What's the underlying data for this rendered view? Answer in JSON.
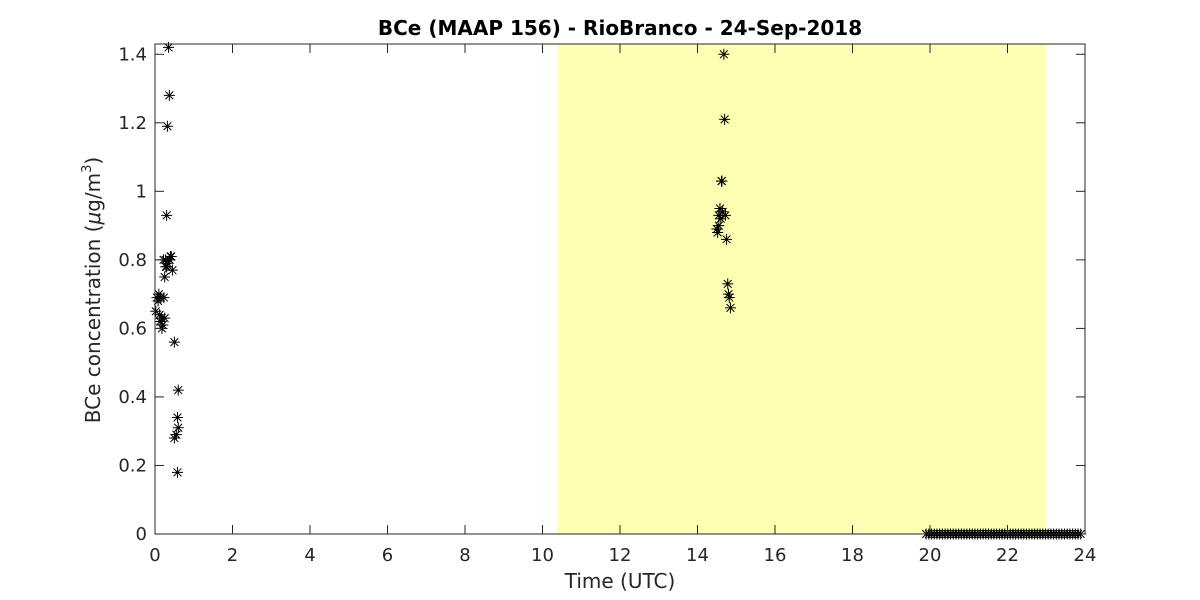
{
  "chart_data": {
    "type": "scatter",
    "title": "BCe (MAAP 156) - RioBranco - 24-Sep-2018",
    "xlabel": "Time (UTC)",
    "ylabel_main": "BCe concentration (",
    "ylabel_mu": "μ",
    "ylabel_unit": "g/m",
    "ylabel_sup": "3",
    "ylabel_close": ")",
    "xlim": [
      0,
      24
    ],
    "ylim": [
      0,
      1.43
    ],
    "xticks": [
      0,
      2,
      4,
      6,
      8,
      10,
      12,
      14,
      16,
      18,
      20,
      22,
      24
    ],
    "xtick_labels": [
      "0",
      "2",
      "4",
      "6",
      "8",
      "10",
      "12",
      "14",
      "16",
      "18",
      "20",
      "22",
      "24"
    ],
    "yticks": [
      0,
      0.2,
      0.4,
      0.6,
      0.8,
      1.0,
      1.2,
      1.4
    ],
    "ytick_labels": [
      "0",
      "0.2",
      "0.4",
      "0.6",
      "0.8",
      "1",
      "1.2",
      "1.4"
    ],
    "grid": false,
    "marker": "asterisk",
    "marker_color": "#000000",
    "highlight_band": {
      "x_start": 10.4,
      "x_end": 23.0,
      "color": "#ffffb3"
    },
    "series": [
      {
        "x": [
          0.02,
          0.05,
          0.08,
          0.1,
          0.12,
          0.13,
          0.15,
          0.17,
          0.18,
          0.2,
          0.22,
          0.23,
          0.25,
          0.25,
          0.27,
          0.28,
          0.3,
          0.3,
          0.32,
          0.33,
          0.35,
          0.37,
          0.38,
          0.4,
          0.42,
          0.45,
          0.5,
          0.5,
          0.55,
          0.58,
          0.58,
          0.6
        ],
        "y": [
          0.65,
          0.69,
          0.68,
          0.7,
          0.64,
          0.62,
          0.69,
          0.63,
          0.6,
          0.61,
          0.8,
          0.69,
          0.75,
          0.63,
          0.8,
          0.78,
          0.78,
          0.93,
          1.19,
          0.79,
          1.42,
          1.28,
          0.8,
          0.81,
          0.81,
          0.77,
          0.56,
          0.28,
          0.29,
          0.18,
          0.34,
          0.31
        ],
        "x_extra": [
          0.6
        ],
        "y_extra": [
          0.42
        ]
      },
      {
        "x": [
          14.5,
          14.52,
          14.55,
          14.55,
          14.58,
          14.6,
          14.62,
          14.63,
          14.65,
          14.68,
          14.7,
          14.72,
          14.75,
          14.78,
          14.8,
          14.82,
          14.85
        ],
        "y": [
          0.89,
          0.88,
          0.93,
          0.9,
          0.95,
          0.92,
          1.03,
          1.03,
          0.94,
          1.4,
          1.21,
          0.93,
          0.86,
          0.73,
          0.7,
          0.69,
          0.66
        ]
      },
      {
        "x_start": 19.9,
        "x_end": 23.95,
        "step": 0.07,
        "y": 0
      }
    ]
  }
}
